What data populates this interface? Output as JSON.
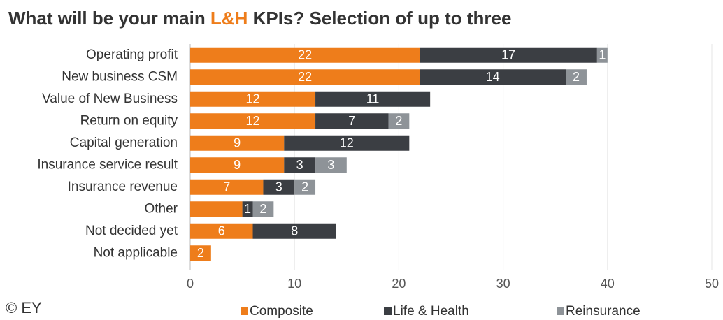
{
  "chart_data": {
    "type": "stacked_barh",
    "title": [
      "What will be your main ",
      "L&H",
      " KPIs? Selection of up to three"
    ],
    "title_colors": [
      "#333333",
      "#ee7d1b",
      "#333333"
    ],
    "source": "© EY",
    "categories": [
      "Operating profit",
      "New business CSM",
      "Value of New Business",
      "Return on equity",
      "Capital generation",
      "Insurance service result",
      "Insurance revenue",
      "Other",
      "Not decided yet",
      "Not applicable"
    ],
    "series": [
      {
        "name": "Composite",
        "color": "#ee7d1b",
        "values": [
          22,
          22,
          12,
          12,
          9,
          9,
          7,
          5,
          6,
          2
        ],
        "value_labels": [
          "22",
          "22",
          "12",
          "12",
          "9",
          "9",
          "7",
          null,
          "6",
          "2"
        ]
      },
      {
        "name": "Life & Health",
        "color": "#3b3e43",
        "values": [
          17,
          14,
          11,
          7,
          12,
          3,
          3,
          1,
          8,
          null
        ],
        "value_labels": [
          "17",
          "14",
          "11",
          "7",
          "12",
          "3",
          "3",
          "1",
          "8",
          null
        ]
      },
      {
        "name": "Reinsurance",
        "color": "#8e9398",
        "values": [
          1,
          2,
          null,
          2,
          null,
          3,
          2,
          2,
          null,
          null
        ],
        "value_labels": [
          "1",
          "2",
          null,
          "2",
          null,
          "3",
          "2",
          "2",
          null,
          null
        ]
      }
    ],
    "xlim": [
      0,
      50
    ],
    "xticks": [
      0,
      10,
      20,
      30,
      40,
      50
    ],
    "grid": true
  }
}
